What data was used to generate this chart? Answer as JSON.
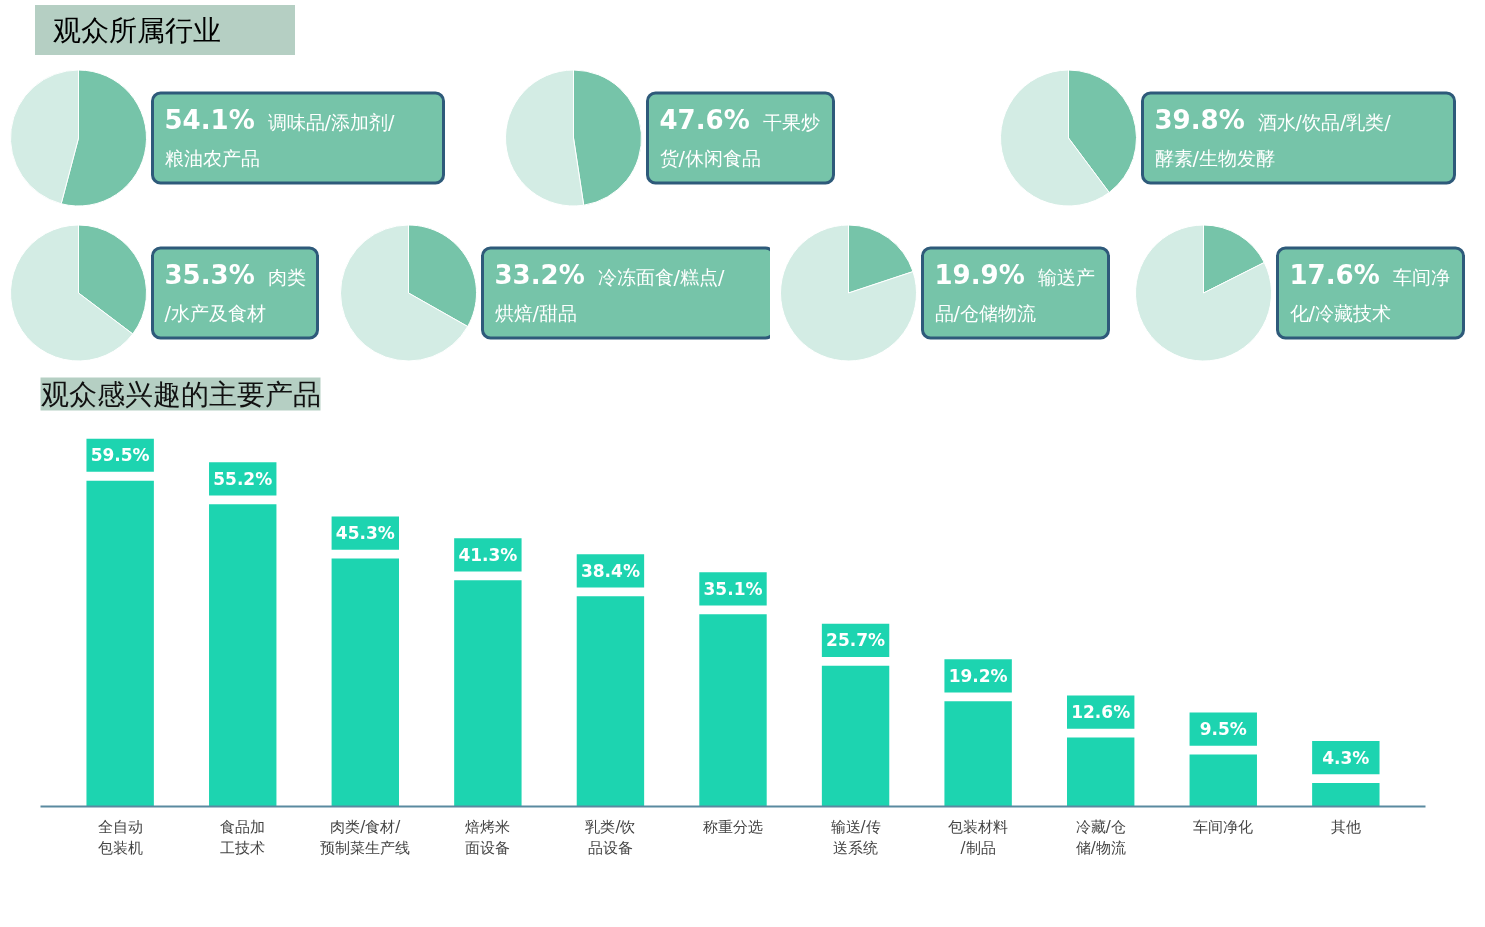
{
  "chart_data": [
    {
      "type": "pie",
      "title": "观众所属行业",
      "categories": [
        "调味品/添加剂/粮油农产品",
        null
      ],
      "values": [
        54.1,
        45.9
      ],
      "colors": [
        "#76c4a9",
        "#d3ece4"
      ],
      "value_labels": [
        "54.1%",
        null
      ]
    },
    {
      "type": "pie",
      "categories": [
        "干果炒货/休闲食品",
        null
      ],
      "values": [
        47.6,
        52.4
      ],
      "colors": [
        "#76c4a9",
        "#d3ece4"
      ],
      "value_labels": [
        "47.6%",
        null
      ]
    },
    {
      "type": "pie",
      "categories": [
        "酒水/饮品/乳类/酵素/生物发酵",
        null
      ],
      "values": [
        39.8,
        60.2
      ],
      "colors": [
        "#76c4a9",
        "#d3ece4"
      ],
      "value_labels": [
        "39.8%",
        null
      ]
    },
    {
      "type": "pie",
      "categories": [
        "肉类/水产及食材",
        null
      ],
      "values": [
        35.3,
        64.7
      ],
      "colors": [
        "#76c4a9",
        "#d3ece4"
      ],
      "value_labels": [
        "35.3%",
        null
      ]
    },
    {
      "type": "pie",
      "categories": [
        "冷冻面食/糕点/烘焙/甜品",
        null
      ],
      "values": [
        33.2,
        66.8
      ],
      "colors": [
        "#76c4a9",
        "#d3ece4"
      ],
      "value_labels": [
        "33.2%",
        null
      ]
    },
    {
      "type": "pie",
      "categories": [
        "输送产品/仓储物流",
        null
      ],
      "values": [
        19.9,
        80.1
      ],
      "colors": [
        "#76c4a9",
        "#d3ece4"
      ],
      "value_labels": [
        "19.9%",
        null
      ]
    },
    {
      "type": "pie",
      "categories": [
        "车间净化/冷藏技术",
        null
      ],
      "values": [
        17.6,
        82.4
      ],
      "colors": [
        "#76c4a9",
        "#d3ece4"
      ],
      "value_labels": [
        "17.6%",
        null
      ]
    },
    {
      "type": "bar",
      "title": "观众感兴趣的主要产品",
      "categories": [
        "全自动包装机",
        "食品加工技术",
        "肉类/食材/预制菜生产线",
        "焙烤米面设备",
        "乳类/饮品设备",
        "称重分选",
        "输送/传送系统",
        "包装材料/制品",
        "冷藏/仓储/物流",
        "车间净化",
        "其他"
      ],
      "values": [
        59.5,
        55.2,
        45.3,
        41.3,
        38.4,
        35.1,
        25.7,
        19.2,
        12.6,
        9.5,
        4.3
      ],
      "color": "#1dd4b0",
      "value_labels": [
        "59.5%",
        "55.2%",
        "45.3%",
        "41.3%",
        "38.4%",
        "35.1%",
        "25.7%",
        "19.2%",
        "12.6%",
        "9.5%",
        "4.3%"
      ]
    }
  ]
}
